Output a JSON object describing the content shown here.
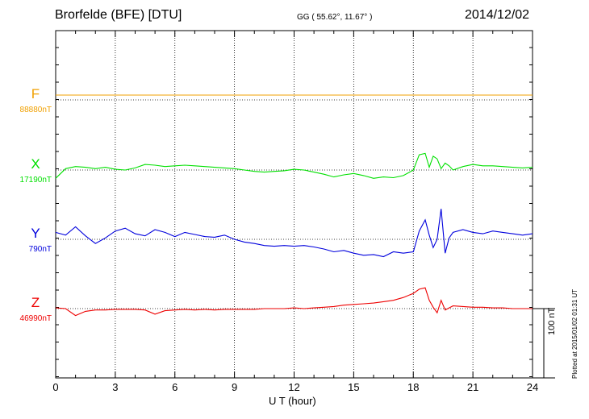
{
  "header": {
    "title": "Brorfelde (BFE)  [DTU]",
    "coords": "GG ( 55.62°,  11.67° )",
    "date": "2014/12/02"
  },
  "components": [
    {
      "letter": "F",
      "baseline": "88880nT",
      "color": "#f0a000"
    },
    {
      "letter": "X",
      "baseline": "17190nT",
      "color": "#00e000"
    },
    {
      "letter": "Y",
      "baseline": "790nT",
      "color": "#0000dd"
    },
    {
      "letter": "Z",
      "baseline": "46990nT",
      "color": "#ee0000"
    }
  ],
  "scale_label": "100 nT",
  "plotted_note": "Plotted at 2015/01/02 01:31  UT",
  "chart_data": {
    "type": "line",
    "xlabel": "U T (hour)",
    "xlim": [
      0,
      24
    ],
    "x_ticks": [
      "0",
      "3",
      "6",
      "9",
      "12",
      "15",
      "18",
      "21",
      "24"
    ],
    "grid": true,
    "scale_bar_nT": 100,
    "series": [
      {
        "name": "F",
        "unit": "nT offset from baseline",
        "x": [
          0,
          24
        ],
        "y": [
          7,
          7
        ]
      },
      {
        "name": "X",
        "unit": "nT offset from baseline",
        "x": [
          0,
          0.5,
          1,
          1.5,
          2,
          2.5,
          3,
          3.5,
          4,
          4.5,
          5,
          5.5,
          6,
          6.5,
          7,
          7.5,
          8,
          8.5,
          9,
          9.5,
          10,
          10.5,
          11,
          11.5,
          12,
          12.5,
          13,
          13.5,
          14,
          14.5,
          15,
          15.5,
          16,
          16.5,
          17,
          17.5,
          18,
          18.3,
          18.6,
          18.8,
          19,
          19.2,
          19.4,
          19.6,
          19.8,
          20,
          20.5,
          21,
          21.5,
          22,
          22.5,
          23,
          23.5,
          24
        ],
        "y": [
          -12,
          2,
          5,
          4,
          2,
          4,
          1,
          0,
          3,
          8,
          7,
          5,
          6,
          7,
          6,
          5,
          4,
          3,
          2,
          0,
          -2,
          -3,
          -2,
          -1,
          1,
          0,
          -3,
          -6,
          -10,
          -7,
          -5,
          -8,
          -12,
          -10,
          -11,
          -8,
          0,
          22,
          24,
          4,
          20,
          16,
          2,
          10,
          6,
          0,
          5,
          8,
          6,
          6,
          5,
          4,
          3,
          4
        ]
      },
      {
        "name": "Y",
        "unit": "nT offset from baseline",
        "x": [
          0,
          0.5,
          1,
          1.5,
          2,
          2.5,
          3,
          3.5,
          4,
          4.5,
          5,
          5.5,
          6,
          6.5,
          7,
          7.5,
          8,
          8.5,
          9,
          9.5,
          10,
          10.5,
          11,
          11.5,
          12,
          12.5,
          13,
          13.5,
          14,
          14.5,
          15,
          15.5,
          16,
          16.5,
          17,
          17.5,
          18,
          18.3,
          18.6,
          18.8,
          19,
          19.2,
          19.4,
          19.6,
          19.8,
          20,
          20.5,
          21,
          21.5,
          22,
          22.5,
          23,
          23.5,
          24
        ],
        "y": [
          10,
          6,
          18,
          5,
          -6,
          2,
          12,
          16,
          8,
          5,
          14,
          10,
          4,
          10,
          7,
          4,
          3,
          6,
          0,
          -4,
          -6,
          -9,
          -10,
          -9,
          -10,
          -9,
          -11,
          -14,
          -18,
          -16,
          -20,
          -23,
          -22,
          -25,
          -18,
          -20,
          -18,
          12,
          28,
          6,
          -12,
          0,
          44,
          -20,
          2,
          10,
          14,
          10,
          8,
          12,
          10,
          8,
          6,
          8
        ]
      },
      {
        "name": "Z",
        "unit": "nT offset from baseline",
        "x": [
          0,
          0.5,
          1,
          1.5,
          2,
          2.5,
          3,
          3.5,
          4,
          4.5,
          5,
          5.5,
          6,
          6.5,
          7,
          7.5,
          8,
          8.5,
          9,
          9.5,
          10,
          10.5,
          11,
          11.5,
          12,
          12.5,
          13,
          13.5,
          14,
          14.5,
          15,
          15.5,
          16,
          16.5,
          17,
          17.5,
          18,
          18.3,
          18.6,
          18.8,
          19,
          19.2,
          19.4,
          19.6,
          19.8,
          20,
          20.5,
          21,
          21.5,
          22,
          22.5,
          23,
          23.5,
          24
        ],
        "y": [
          1,
          0,
          -10,
          -4,
          -2,
          -2,
          -1,
          -1,
          -1,
          -2,
          -8,
          -3,
          -2,
          -1,
          -2,
          -1,
          -2,
          -1,
          -1,
          -1,
          -1,
          0,
          0,
          0,
          1,
          0,
          1,
          2,
          3,
          5,
          6,
          7,
          8,
          10,
          12,
          16,
          22,
          28,
          30,
          12,
          2,
          -6,
          12,
          -2,
          1,
          4,
          3,
          2,
          2,
          1,
          1,
          0,
          0,
          0
        ]
      }
    ]
  }
}
